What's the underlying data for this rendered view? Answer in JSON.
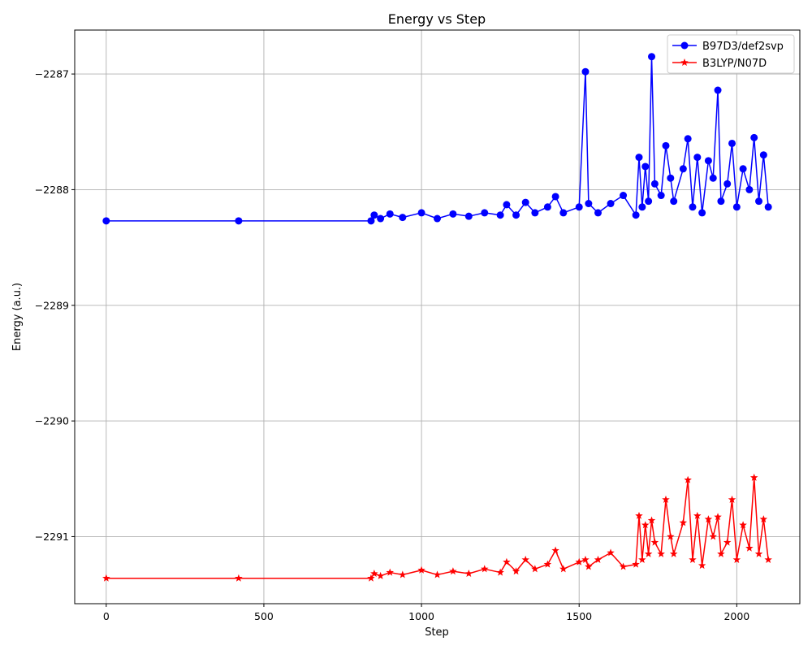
{
  "chart_data": {
    "type": "line",
    "title": "Energy vs Step",
    "xlabel": "Step",
    "ylabel": "Energy (a.u.)",
    "xlim": [
      -100,
      2200
    ],
    "ylim": [
      -2291.58,
      -2286.62
    ],
    "xticks": [
      0,
      500,
      1000,
      1500,
      2000
    ],
    "yticks": [
      -2291,
      -2290,
      -2289,
      -2288,
      -2287
    ],
    "ytick_labels": [
      "−2291",
      "−2290",
      "−2289",
      "−2288",
      "−2287"
    ],
    "grid": true,
    "legend_position": "top-right",
    "series": [
      {
        "name": "B97D3/def2svp",
        "color": "#0000ff",
        "marker": "circle",
        "x": [
          0,
          420,
          840,
          850,
          870,
          900,
          940,
          1000,
          1050,
          1100,
          1150,
          1200,
          1250,
          1270,
          1300,
          1330,
          1360,
          1400,
          1425,
          1450,
          1500,
          1520,
          1530,
          1560,
          1600,
          1640,
          1680,
          1690,
          1700,
          1710,
          1720,
          1730,
          1740,
          1760,
          1775,
          1790,
          1800,
          1830,
          1845,
          1860,
          1875,
          1890,
          1910,
          1925,
          1940,
          1950,
          1970,
          1985,
          2000,
          2020,
          2040,
          2055,
          2070,
          2085,
          2100
        ],
        "y": [
          -2288.27,
          -2288.27,
          -2288.27,
          -2288.22,
          -2288.25,
          -2288.21,
          -2288.24,
          -2288.2,
          -2288.25,
          -2288.21,
          -2288.23,
          -2288.2,
          -2288.22,
          -2288.13,
          -2288.22,
          -2288.11,
          -2288.2,
          -2288.15,
          -2288.06,
          -2288.2,
          -2288.15,
          -2286.98,
          -2288.12,
          -2288.2,
          -2288.12,
          -2288.05,
          -2288.22,
          -2287.72,
          -2288.15,
          -2287.8,
          -2288.1,
          -2286.85,
          -2287.95,
          -2288.05,
          -2287.62,
          -2287.9,
          -2288.1,
          -2287.82,
          -2287.56,
          -2288.15,
          -2287.72,
          -2288.2,
          -2287.75,
          -2287.9,
          -2287.14,
          -2288.1,
          -2287.95,
          -2287.6,
          -2288.15,
          -2287.82,
          -2288.0,
          -2287.55,
          -2288.1,
          -2287.7,
          -2288.15
        ]
      },
      {
        "name": "B3LYP/N07D",
        "color": "#ff0000",
        "marker": "star",
        "x": [
          0,
          420,
          840,
          850,
          870,
          900,
          940,
          1000,
          1050,
          1100,
          1150,
          1200,
          1250,
          1270,
          1300,
          1330,
          1360,
          1400,
          1425,
          1450,
          1500,
          1520,
          1530,
          1560,
          1600,
          1640,
          1680,
          1690,
          1700,
          1710,
          1720,
          1730,
          1740,
          1760,
          1775,
          1790,
          1800,
          1830,
          1845,
          1860,
          1875,
          1890,
          1910,
          1925,
          1940,
          1950,
          1970,
          1985,
          2000,
          2020,
          2040,
          2055,
          2070,
          2085,
          2100
        ],
        "y": [
          -2291.36,
          -2291.36,
          -2291.36,
          -2291.32,
          -2291.34,
          -2291.31,
          -2291.33,
          -2291.29,
          -2291.33,
          -2291.3,
          -2291.32,
          -2291.28,
          -2291.31,
          -2291.22,
          -2291.3,
          -2291.2,
          -2291.28,
          -2291.24,
          -2291.12,
          -2291.28,
          -2291.22,
          -2291.2,
          -2291.26,
          -2291.2,
          -2291.14,
          -2291.26,
          -2291.24,
          -2290.82,
          -2291.2,
          -2290.9,
          -2291.15,
          -2290.86,
          -2291.05,
          -2291.15,
          -2290.68,
          -2291.0,
          -2291.15,
          -2290.88,
          -2290.51,
          -2291.2,
          -2290.82,
          -2291.25,
          -2290.85,
          -2291.0,
          -2290.83,
          -2291.15,
          -2291.05,
          -2290.68,
          -2291.2,
          -2290.9,
          -2291.1,
          -2290.49,
          -2291.15,
          -2290.85,
          -2291.2
        ]
      }
    ]
  }
}
